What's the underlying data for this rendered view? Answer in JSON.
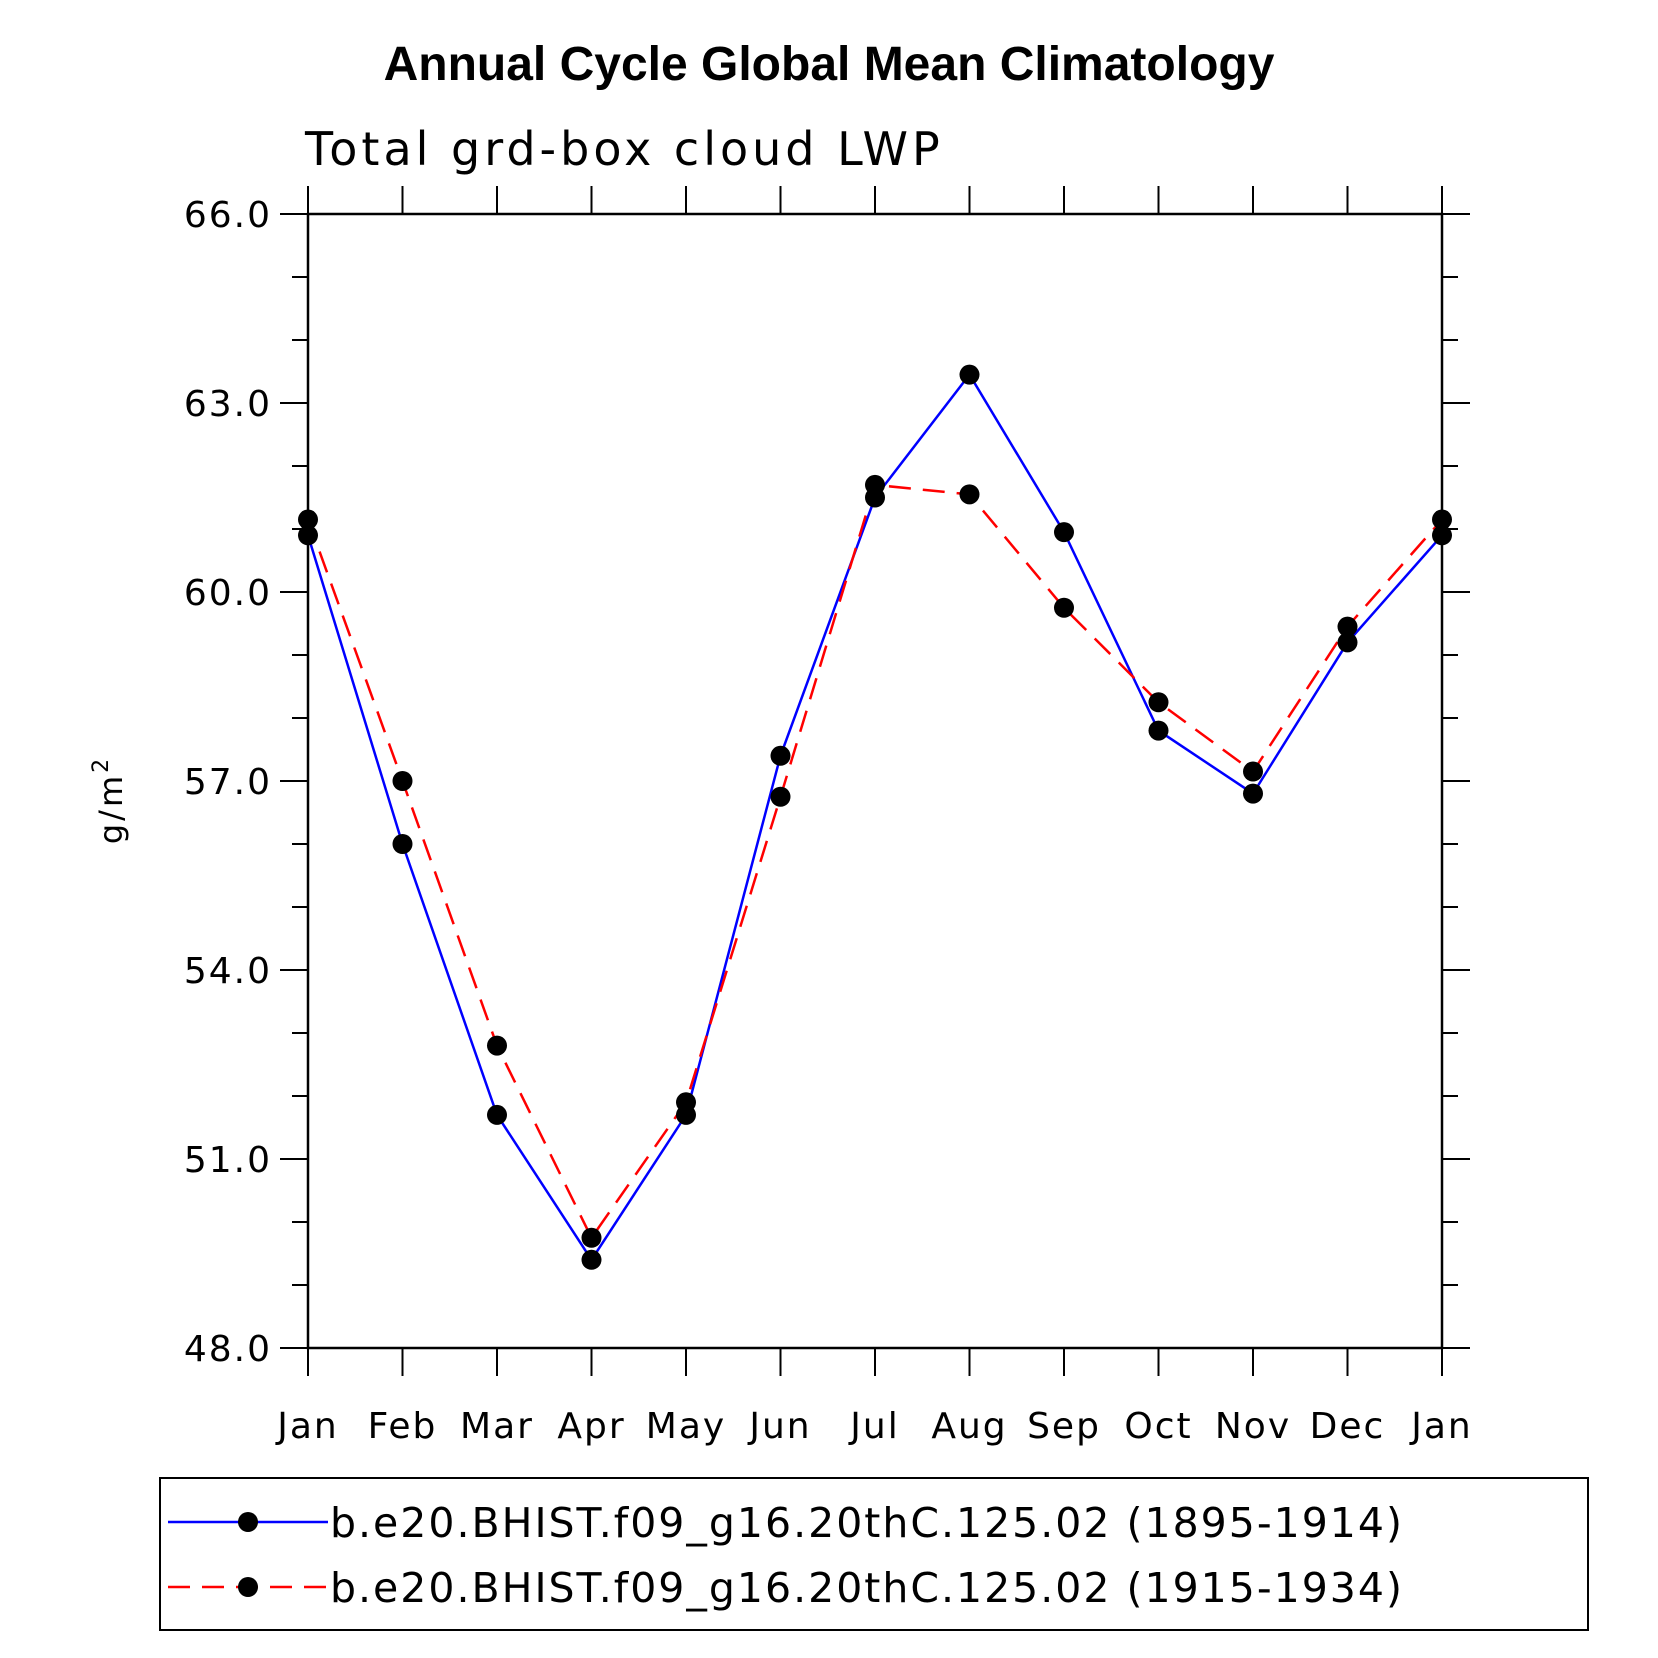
{
  "chart_data": {
    "type": "line",
    "title": "Annual Cycle Global Mean Climatology",
    "subtitle": "Total grd-box cloud LWP",
    "ylabel": "g/m",
    "ylabel_sup": "2",
    "xlabel": "",
    "categories": [
      "Jan",
      "Feb",
      "Mar",
      "Apr",
      "May",
      "Jun",
      "Jul",
      "Aug",
      "Sep",
      "Oct",
      "Nov",
      "Dec",
      "Jan"
    ],
    "ylim": [
      48.0,
      66.0
    ],
    "yticks": [
      "48.0",
      "51.0",
      "54.0",
      "57.0",
      "60.0",
      "63.0",
      "66.0"
    ],
    "series": [
      {
        "name": "b.e20.BHIST.f09_g16.20thC.125.02 (1895-1914)",
        "color": "#0000ff",
        "dash": "solid",
        "values": [
          60.9,
          56.0,
          51.7,
          49.4,
          51.7,
          57.4,
          61.5,
          63.45,
          60.95,
          57.8,
          56.8,
          59.2,
          60.9
        ]
      },
      {
        "name": "b.e20.BHIST.f09_g16.20thC.125.02 (1915-1934)",
        "color": "#ff0000",
        "dash": "dashed",
        "values": [
          61.15,
          57.0,
          52.8,
          49.75,
          51.9,
          56.75,
          61.7,
          61.55,
          59.75,
          58.25,
          57.15,
          59.45,
          61.15
        ]
      }
    ],
    "legend_position": "bottom"
  }
}
